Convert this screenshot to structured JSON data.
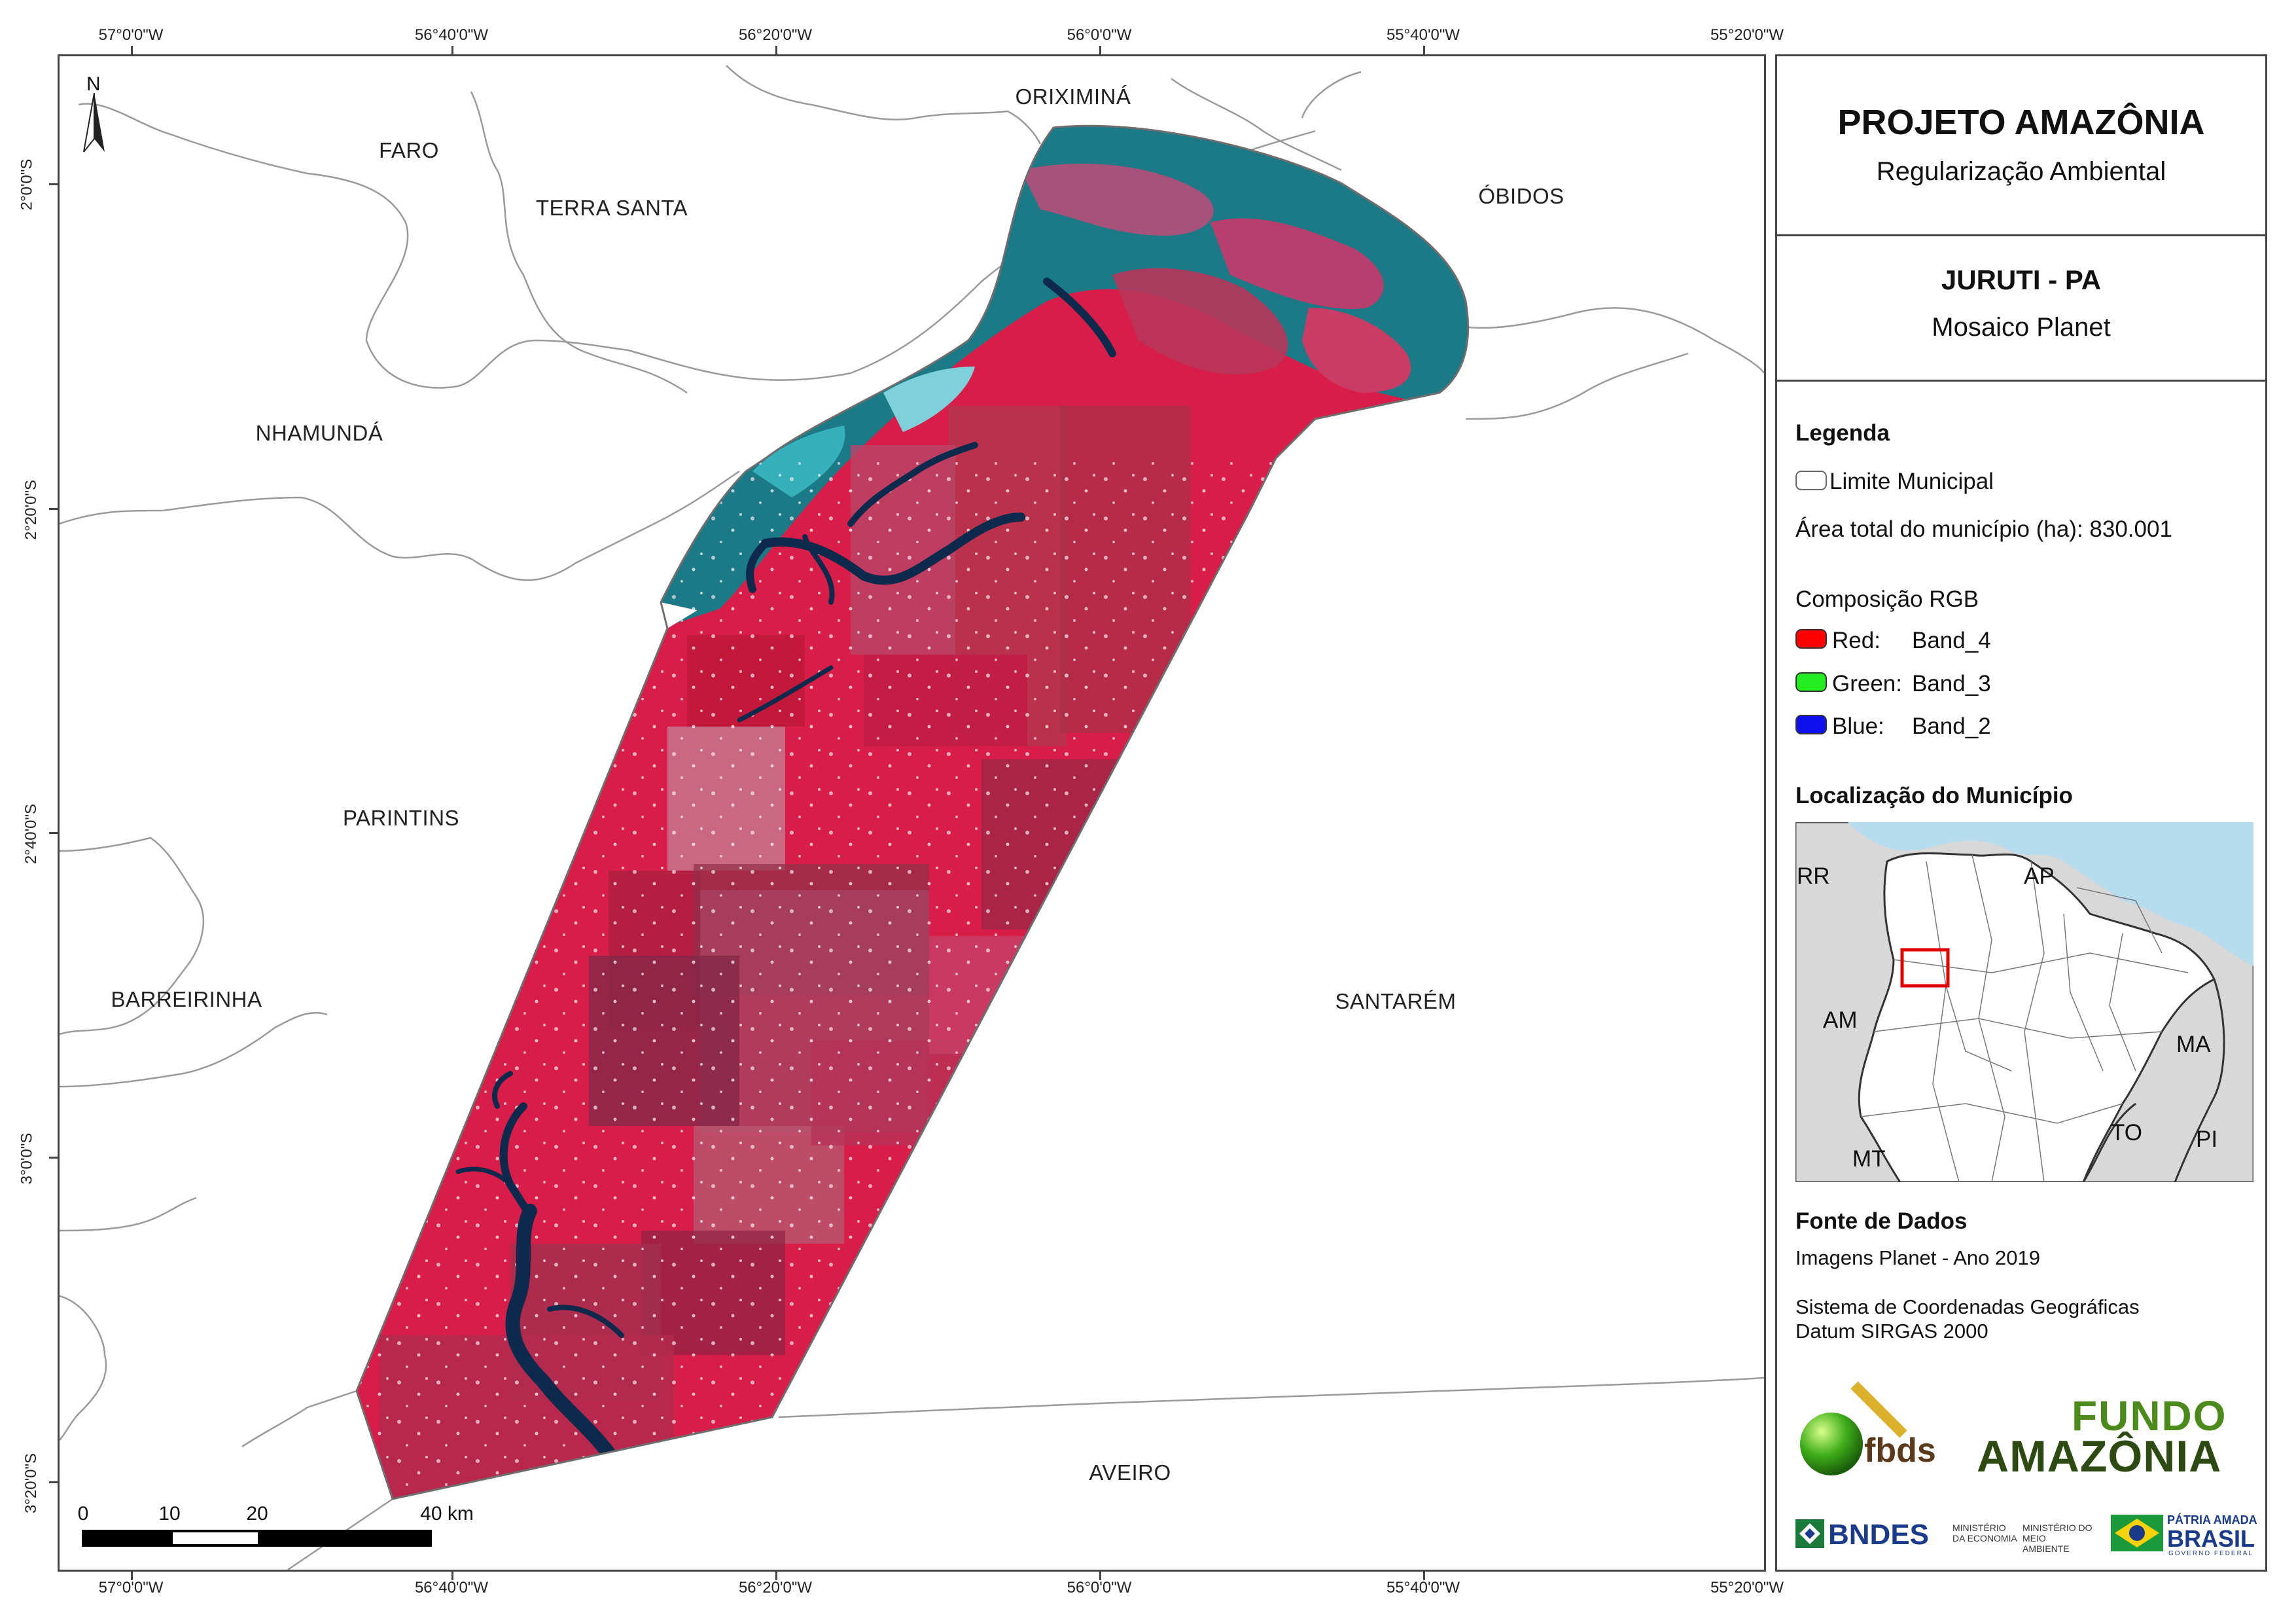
{
  "coordinates": {
    "top": [
      "57°0'0\"W",
      "56°40'0\"W",
      "56°20'0\"W",
      "56°0'0\"W",
      "55°40'0\"W",
      "55°20'0\"W"
    ],
    "bottom": [
      "57°0'0\"W",
      "56°40'0\"W",
      "56°20'0\"W",
      "56°0'0\"W",
      "55°40'0\"W",
      "55°20'0\"W"
    ],
    "left": [
      "2°0'0\"S",
      "2°20'0\"S",
      "2°40'0\"S",
      "3°0'0\"S",
      "3°20'0\"S"
    ],
    "right": [
      "",
      "",
      "",
      "",
      ""
    ]
  },
  "north_arrow": {
    "label": "N"
  },
  "municipalities": {
    "faro": "FARO",
    "terra_santa": "TERRA SANTA",
    "oriximina": "ORIXIMINÁ",
    "obidos": "ÓBIDOS",
    "nhamunda": "NHAMUNDÁ",
    "parintins": "PARINTINS",
    "barreirinha": "BARREIRINHA",
    "santarem": "SANTARÉM",
    "aveiro": "AVEIRO"
  },
  "scale_bar": {
    "labels": [
      "0",
      "10",
      "20",
      "40 km"
    ],
    "values_km": [
      0,
      10,
      20,
      40
    ]
  },
  "panel": {
    "title": "PROJETO AMAZÔNIA",
    "subtitle": "Regularização Ambiental",
    "municipality": "JURUTI - PA",
    "product": "Mosaico Planet",
    "legend_heading": "Legenda",
    "limit_label": "Limite Municipal",
    "area_label": "Área total do município (ha): 830.001",
    "rgb_heading": "Composição RGB",
    "bands": [
      {
        "channel": "Red:",
        "band": "Band_4",
        "color": "#ff0000"
      },
      {
        "channel": "Green:",
        "band": "Band_3",
        "color": "#22ee22"
      },
      {
        "channel": "Blue:",
        "band": "Band_2",
        "color": "#1010ee"
      }
    ],
    "location_heading": "Localização do Município",
    "states": {
      "rr": "RR",
      "ap": "AP",
      "am": "AM",
      "ma": "MA",
      "to": "TO",
      "pi": "PI",
      "mt": "MT"
    },
    "source_heading": "Fonte de Dados",
    "source_line": "Imagens Planet - Ano 2019",
    "crs_line1": "Sistema de Coordenadas Geográficas",
    "crs_line2": "Datum SIRGAS 2000"
  },
  "logos": {
    "fbds": "fbds",
    "fundo_line1": "FUNDO",
    "fundo_line2": "AMAZÔNIA",
    "bndes": "BNDES",
    "min_economia": "MINISTÉRIO DA ECONOMIA",
    "min_meio": "MINISTÉRIO DO MEIO AMBIENTE",
    "patria": "PÁTRIA AMADA",
    "brasil": "BRASIL",
    "governo": "GOVERNO FEDERAL"
  },
  "colors": {
    "vegetation": "#d81e48",
    "water": "#1c7a86",
    "river": "#0d2a4c",
    "ocean": "#b6dcee",
    "land_gray": "#d8d8d8",
    "inset_box": "#e00000",
    "frame": "#444444"
  }
}
